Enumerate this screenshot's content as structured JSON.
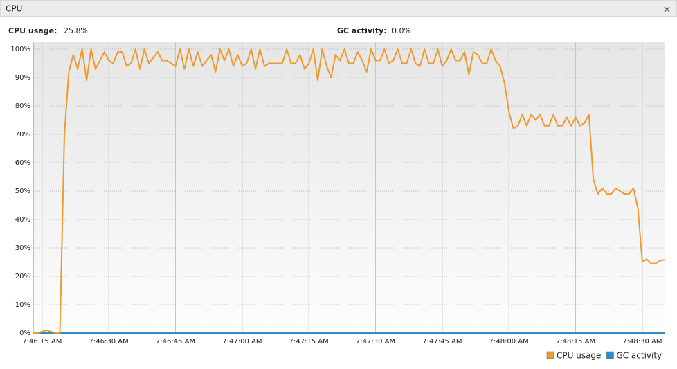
{
  "panel": {
    "title": "CPU"
  },
  "stats": [
    {
      "label": "CPU usage:",
      "value": "25.8%"
    },
    {
      "label": "GC activity:",
      "value": "0.0%"
    }
  ],
  "chart_data": {
    "type": "line",
    "x": [
      "7:46:13 AM",
      "7:46:14 AM",
      "7:46:15 AM",
      "7:46:16 AM",
      "7:46:17 AM",
      "7:46:18 AM",
      "7:46:19 AM",
      "7:46:20 AM",
      "7:46:21 AM",
      "7:46:22 AM",
      "7:46:23 AM",
      "7:46:24 AM",
      "7:46:25 AM",
      "7:46:26 AM",
      "7:46:27 AM",
      "7:46:28 AM",
      "7:46:29 AM",
      "7:46:30 AM",
      "7:46:31 AM",
      "7:46:32 AM",
      "7:46:33 AM",
      "7:46:34 AM",
      "7:46:35 AM",
      "7:46:36 AM",
      "7:46:37 AM",
      "7:46:38 AM",
      "7:46:39 AM",
      "7:46:40 AM",
      "7:46:41 AM",
      "7:46:42 AM",
      "7:46:43 AM",
      "7:46:44 AM",
      "7:46:45 AM",
      "7:46:46 AM",
      "7:46:47 AM",
      "7:46:48 AM",
      "7:46:49 AM",
      "7:46:50 AM",
      "7:46:51 AM",
      "7:46:52 AM",
      "7:46:53 AM",
      "7:46:54 AM",
      "7:46:55 AM",
      "7:46:56 AM",
      "7:46:57 AM",
      "7:46:58 AM",
      "7:46:59 AM",
      "7:47:00 AM",
      "7:47:01 AM",
      "7:47:02 AM",
      "7:47:03 AM",
      "7:47:04 AM",
      "7:47:05 AM",
      "7:47:06 AM",
      "7:47:07 AM",
      "7:47:08 AM",
      "7:47:09 AM",
      "7:47:10 AM",
      "7:47:11 AM",
      "7:47:12 AM",
      "7:47:13 AM",
      "7:47:14 AM",
      "7:47:15 AM",
      "7:47:16 AM",
      "7:47:17 AM",
      "7:47:18 AM",
      "7:47:19 AM",
      "7:47:20 AM",
      "7:47:21 AM",
      "7:47:22 AM",
      "7:47:23 AM",
      "7:47:24 AM",
      "7:47:25 AM",
      "7:47:26 AM",
      "7:47:27 AM",
      "7:47:28 AM",
      "7:47:29 AM",
      "7:47:30 AM",
      "7:47:31 AM",
      "7:47:32 AM",
      "7:47:33 AM",
      "7:47:34 AM",
      "7:47:35 AM",
      "7:47:36 AM",
      "7:47:37 AM",
      "7:47:38 AM",
      "7:47:39 AM",
      "7:47:40 AM",
      "7:47:41 AM",
      "7:47:42 AM",
      "7:47:43 AM",
      "7:47:44 AM",
      "7:47:45 AM",
      "7:47:46 AM",
      "7:47:47 AM",
      "7:47:48 AM",
      "7:47:49 AM",
      "7:47:50 AM",
      "7:47:51 AM",
      "7:47:52 AM",
      "7:47:53 AM",
      "7:47:54 AM",
      "7:47:55 AM",
      "7:47:56 AM",
      "7:47:57 AM",
      "7:47:58 AM",
      "7:47:59 AM",
      "7:48:00 AM",
      "7:48:01 AM",
      "7:48:02 AM",
      "7:48:03 AM",
      "7:48:04 AM",
      "7:48:05 AM",
      "7:48:06 AM",
      "7:48:07 AM",
      "7:48:08 AM",
      "7:48:09 AM",
      "7:48:10 AM",
      "7:48:11 AM",
      "7:48:12 AM",
      "7:48:13 AM",
      "7:48:14 AM",
      "7:48:15 AM",
      "7:48:16 AM",
      "7:48:17 AM",
      "7:48:18 AM",
      "7:48:19 AM",
      "7:48:20 AM",
      "7:48:21 AM",
      "7:48:22 AM",
      "7:48:23 AM",
      "7:48:24 AM",
      "7:48:25 AM",
      "7:48:26 AM",
      "7:48:27 AM",
      "7:48:28 AM",
      "7:48:29 AM",
      "7:48:30 AM",
      "7:48:31 AM",
      "7:48:32 AM",
      "7:48:33 AM",
      "7:48:34 AM",
      "7:48:35 AM"
    ],
    "series": [
      {
        "name": "CPU usage",
        "color": "#f0992c",
        "values": [
          0,
          0,
          0.5,
          1,
          0.5,
          0,
          0,
          70,
          92,
          98,
          93,
          100,
          89,
          100,
          93,
          96,
          99,
          96,
          95,
          99,
          99,
          94,
          95,
          100,
          93,
          100,
          95,
          97,
          99,
          96,
          96,
          95,
          94,
          100,
          93,
          100,
          94,
          99,
          94,
          96,
          98,
          92,
          100,
          96,
          100,
          94,
          98,
          94,
          95,
          100,
          93,
          100,
          94,
          95,
          95,
          95,
          95,
          100,
          95,
          95,
          98,
          93,
          95,
          100,
          89,
          100,
          94,
          90,
          98,
          96,
          100,
          95,
          95,
          99,
          96,
          92,
          100,
          96,
          96,
          100,
          95,
          96,
          100,
          95,
          95,
          100,
          95,
          94,
          100,
          95,
          95,
          100,
          94,
          96,
          100,
          96,
          96,
          99,
          91,
          99,
          98,
          95,
          95,
          100,
          96,
          94,
          88,
          78,
          72,
          73,
          77,
          73,
          77,
          75,
          77,
          73,
          73,
          77,
          73,
          73,
          76,
          73,
          76,
          73,
          74,
          77,
          54,
          49,
          51,
          49,
          49,
          51,
          50,
          49,
          49,
          51,
          44,
          25,
          26,
          24.5,
          24.5,
          25.5,
          25.8
        ]
      },
      {
        "name": "GC activity",
        "color": "#2a8fc4",
        "values": [
          0,
          0,
          0,
          0,
          0,
          0,
          0,
          0,
          0,
          0,
          0,
          0,
          0,
          0,
          0,
          0,
          0,
          0,
          0,
          0,
          0,
          0,
          0,
          0,
          0,
          0,
          0,
          0,
          0,
          0,
          0,
          0,
          0,
          0,
          0,
          0,
          0,
          0,
          0,
          0,
          0,
          0,
          0,
          0,
          0,
          0,
          0,
          0,
          0,
          0,
          0,
          0,
          0,
          0,
          0,
          0,
          0,
          0,
          0,
          0,
          0,
          0,
          0,
          0,
          0,
          0,
          0,
          0,
          0,
          0,
          0,
          0,
          0,
          0,
          0,
          0,
          0,
          0,
          0,
          0,
          0,
          0,
          0,
          0,
          0,
          0,
          0,
          0,
          0,
          0,
          0,
          0,
          0,
          0,
          0,
          0,
          0,
          0,
          0,
          0,
          0,
          0,
          0,
          0,
          0,
          0,
          0,
          0,
          0,
          0,
          0,
          0,
          0,
          0,
          0,
          0,
          0,
          0,
          0,
          0,
          0,
          0,
          0,
          0,
          0,
          0,
          0,
          0,
          0,
          0,
          0,
          0,
          0,
          0,
          0,
          0,
          0,
          0,
          0,
          0,
          0,
          0,
          0
        ]
      }
    ],
    "xlim": [
      "7:46:13 AM",
      "7:48:35 AM"
    ],
    "xticks": [
      "7:46:15 AM",
      "7:46:30 AM",
      "7:46:45 AM",
      "7:47:00 AM",
      "7:47:15 AM",
      "7:47:30 AM",
      "7:47:45 AM",
      "7:48:00 AM",
      "7:48:15 AM",
      "7:48:30 AM"
    ],
    "ylim": [
      0,
      100
    ],
    "yticks": [
      {
        "value": 0,
        "label": "0%"
      },
      {
        "value": 10,
        "label": "10%"
      },
      {
        "value": 20,
        "label": "20%"
      },
      {
        "value": 30,
        "label": "30%"
      },
      {
        "value": 40,
        "label": "40%"
      },
      {
        "value": 50,
        "label": "50%"
      },
      {
        "value": 60,
        "label": "60%"
      },
      {
        "value": 70,
        "label": "70%"
      },
      {
        "value": 80,
        "label": "80%"
      },
      {
        "value": 90,
        "label": "90%"
      },
      {
        "value": 100,
        "label": "100%"
      }
    ],
    "grid": true
  }
}
